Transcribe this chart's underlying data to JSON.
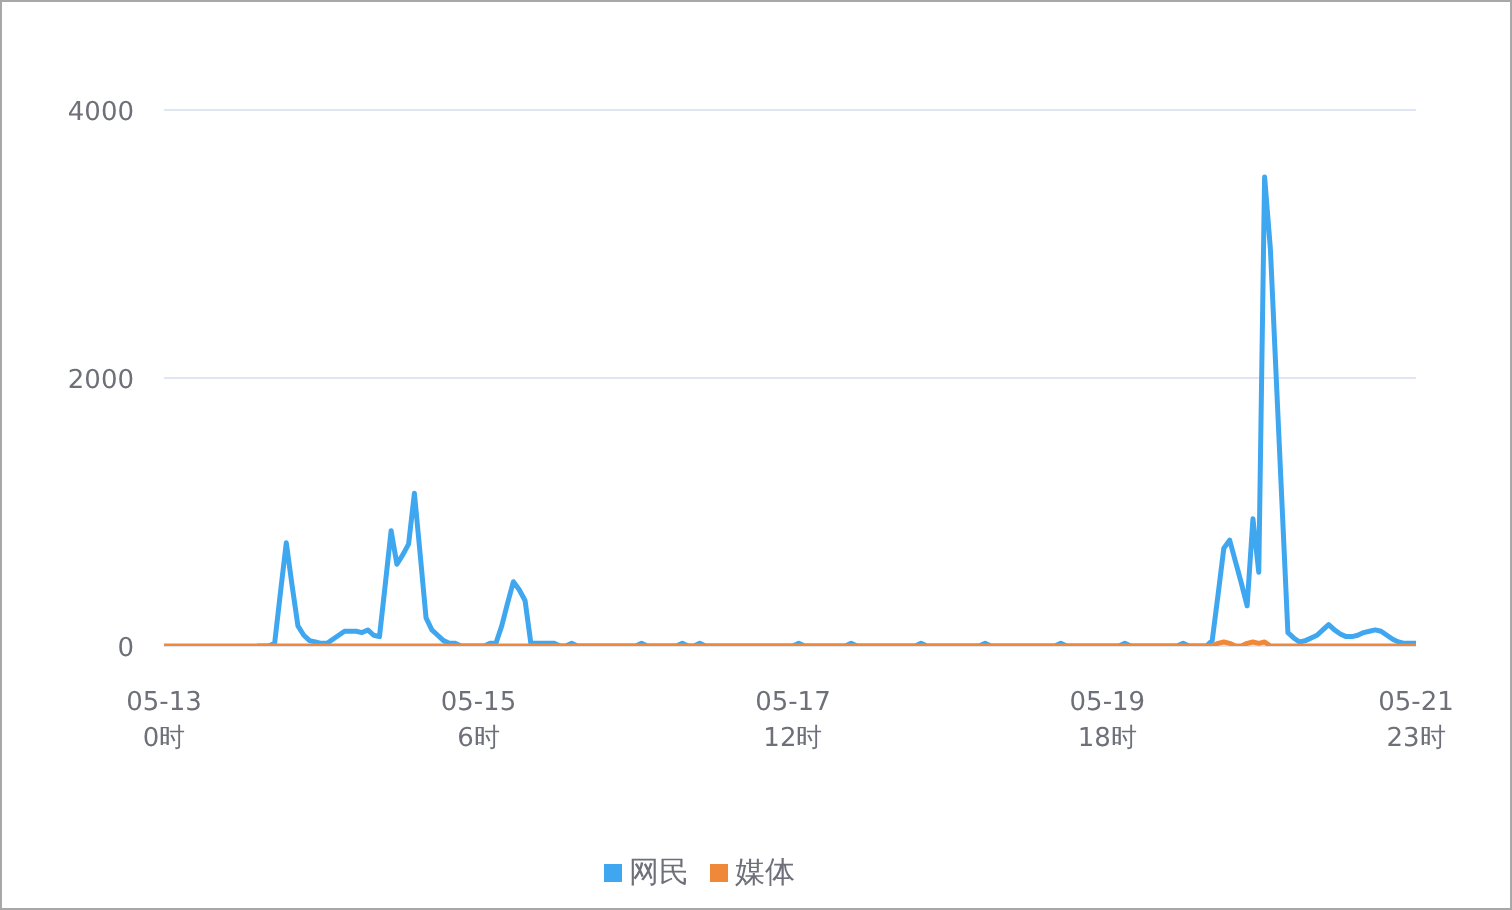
{
  "chart_data": {
    "type": "line",
    "categories": [
      "05-13\n0时",
      null,
      null,
      null,
      null,
      null,
      null,
      null,
      null,
      null,
      null,
      null,
      null,
      null,
      null,
      null,
      null,
      null,
      null,
      null,
      null,
      null,
      null,
      null,
      null,
      null,
      null,
      null,
      null,
      null,
      null,
      null,
      null,
      null,
      null,
      null,
      null,
      null,
      null,
      null,
      null,
      null,
      null,
      null,
      null,
      null,
      null,
      null,
      null,
      null,
      null,
      null,
      null,
      null,
      "05-15\n6时",
      null,
      null,
      null,
      null,
      null,
      null,
      null,
      null,
      null,
      null,
      null,
      null,
      null,
      null,
      null,
      null,
      null,
      null,
      null,
      null,
      null,
      null,
      null,
      null,
      null,
      null,
      null,
      null,
      null,
      null,
      null,
      null,
      null,
      null,
      null,
      null,
      null,
      null,
      null,
      null,
      null,
      null,
      null,
      null,
      null,
      null,
      null,
      null,
      null,
      null,
      null,
      null,
      null,
      "05-17\n12时",
      null,
      null,
      null,
      null,
      null,
      null,
      null,
      null,
      null,
      null,
      null,
      null,
      null,
      null,
      null,
      null,
      null,
      null,
      null,
      null,
      null,
      null,
      null,
      null,
      null,
      null,
      null,
      null,
      null,
      null,
      null,
      null,
      null,
      null,
      null,
      null,
      null,
      null,
      null,
      null,
      null,
      null,
      null,
      null,
      null,
      null,
      null,
      null,
      null,
      null,
      null,
      null,
      null,
      "05-19\n18时",
      null,
      null,
      null,
      null,
      null,
      null,
      null,
      null,
      null,
      null,
      null,
      null,
      null,
      null,
      null,
      null,
      null,
      null,
      null,
      null,
      null,
      null,
      null,
      null,
      null,
      null,
      null,
      null,
      null,
      null,
      null,
      null,
      null,
      null,
      null,
      null,
      null,
      null,
      null,
      null,
      null,
      null,
      null,
      null,
      null,
      null,
      null,
      null,
      null,
      null,
      null,
      null,
      "05-21\n23时"
    ],
    "series": [
      {
        "name": "网民",
        "color": "#3fa7f0",
        "values": [
          null,
          null,
          null,
          null,
          null,
          null,
          null,
          null,
          null,
          null,
          null,
          null,
          null,
          null,
          null,
          null,
          0,
          0,
          0,
          20,
          400,
          770,
          450,
          150,
          80,
          40,
          30,
          20,
          20,
          50,
          80,
          110,
          110,
          110,
          100,
          120,
          80,
          70,
          460,
          860,
          610,
          680,
          760,
          1140,
          680,
          210,
          120,
          80,
          40,
          20,
          20,
          0,
          0,
          0,
          0,
          0,
          20,
          20,
          150,
          320,
          480,
          420,
          340,
          20,
          20,
          20,
          20,
          20,
          0,
          0,
          20,
          0,
          0,
          0,
          0,
          0,
          0,
          0,
          0,
          0,
          0,
          0,
          20,
          0,
          0,
          0,
          0,
          0,
          0,
          20,
          0,
          0,
          20,
          0,
          0,
          0,
          0,
          0,
          0,
          0,
          0,
          0,
          0,
          0,
          0,
          0,
          0,
          0,
          0,
          20,
          0,
          0,
          0,
          0,
          0,
          0,
          0,
          0,
          20,
          0,
          0,
          0,
          0,
          0,
          0,
          0,
          0,
          0,
          0,
          0,
          20,
          0,
          0,
          0,
          0,
          0,
          0,
          0,
          0,
          0,
          0,
          20,
          0,
          0,
          0,
          0,
          0,
          0,
          0,
          0,
          0,
          0,
          0,
          0,
          20,
          0,
          0,
          0,
          0,
          0,
          0,
          0,
          0,
          0,
          0,
          20,
          0,
          0,
          0,
          0,
          0,
          0,
          0,
          0,
          0,
          20,
          0,
          0,
          0,
          0,
          40,
          380,
          730,
          790,
          630,
          470,
          300,
          950,
          550,
          3500,
          2960,
          2000,
          1050,
          100,
          60,
          30,
          40,
          60,
          80,
          120,
          160,
          120,
          90,
          70,
          70,
          80,
          100,
          110,
          120,
          110,
          80,
          50,
          30,
          20,
          20,
          20
        ]
      },
      {
        "name": "媒体",
        "color": "#f0883a",
        "values": [
          0,
          0,
          0,
          0,
          0,
          0,
          0,
          0,
          0,
          0,
          0,
          0,
          0,
          0,
          0,
          0,
          0,
          0,
          0,
          0,
          0,
          0,
          0,
          0,
          0,
          0,
          0,
          0,
          0,
          0,
          0,
          0,
          0,
          0,
          0,
          0,
          0,
          0,
          0,
          0,
          0,
          0,
          0,
          0,
          0,
          0,
          0,
          0,
          0,
          0,
          0,
          0,
          0,
          0,
          0,
          0,
          0,
          0,
          0,
          0,
          0,
          0,
          0,
          0,
          0,
          0,
          0,
          0,
          0,
          0,
          0,
          0,
          0,
          0,
          0,
          0,
          0,
          0,
          0,
          0,
          0,
          0,
          0,
          0,
          0,
          0,
          0,
          0,
          0,
          0,
          0,
          0,
          0,
          0,
          0,
          0,
          0,
          0,
          0,
          0,
          0,
          0,
          0,
          0,
          0,
          0,
          0,
          0,
          0,
          0,
          0,
          0,
          0,
          0,
          0,
          0,
          0,
          0,
          0,
          0,
          0,
          0,
          0,
          0,
          0,
          0,
          0,
          0,
          0,
          0,
          0,
          0,
          0,
          0,
          0,
          0,
          0,
          0,
          0,
          0,
          0,
          0,
          0,
          0,
          0,
          0,
          0,
          0,
          0,
          0,
          0,
          0,
          0,
          0,
          0,
          0,
          0,
          0,
          0,
          0,
          0,
          0,
          0,
          0,
          0,
          0,
          0,
          0,
          0,
          0,
          0,
          0,
          0,
          0,
          0,
          0,
          0,
          0,
          0,
          0,
          0,
          20,
          30,
          20,
          0,
          0,
          20,
          30,
          20,
          30,
          0,
          0,
          0,
          0,
          0,
          0,
          0,
          0,
          0,
          0,
          0,
          0,
          0,
          0,
          0,
          0,
          0,
          0,
          0,
          0,
          0,
          0,
          0,
          0,
          0,
          0
        ]
      }
    ],
    "ylim": [
      0,
      4000
    ],
    "yticks": [
      0,
      2000,
      4000
    ],
    "grid": "y",
    "legend": "bottom",
    "marker": "none"
  }
}
